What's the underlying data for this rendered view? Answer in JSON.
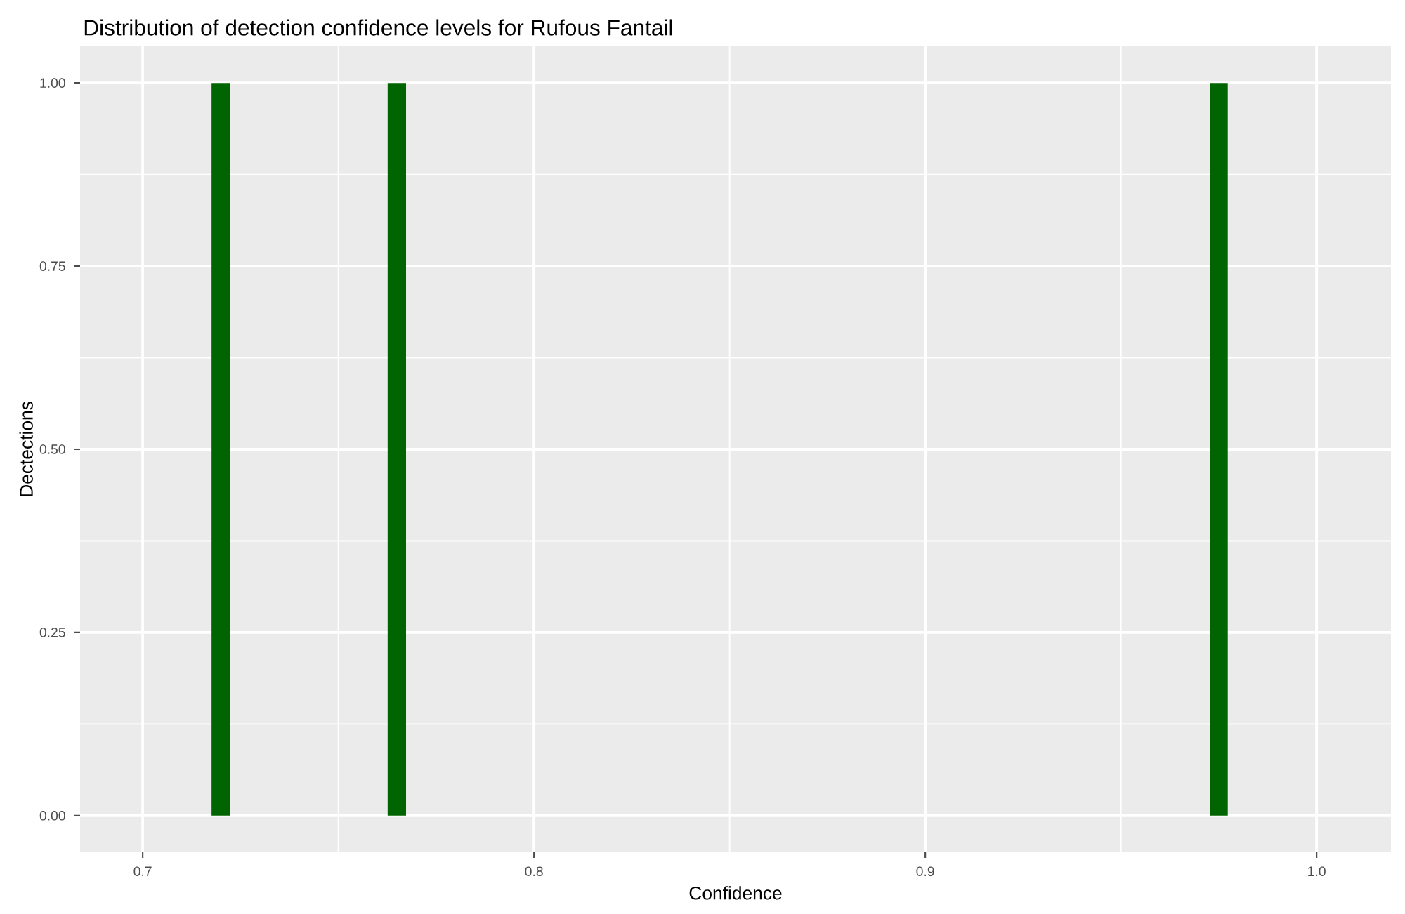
{
  "chart_data": {
    "type": "histogram",
    "title": "Distribution of detection confidence levels for Rufous Fantail",
    "xlabel": "Confidence",
    "ylabel": "Dectections",
    "bins": [
      0.7176,
      0.7223,
      0.7626,
      0.7673,
      0.9727,
      0.9773
    ],
    "values": [
      1,
      0,
      1,
      0,
      1
    ],
    "color": "#006400",
    "xlim": [
      0.684,
      1.019
    ],
    "ylim": [
      -0.05,
      1.05
    ],
    "xticks": [
      0.7,
      0.8,
      0.9,
      {
        "value": 1.0,
        "label": "1.0"
      }
    ],
    "yticks": [
      {
        "value": 0,
        "label": "0.00"
      },
      {
        "value": 0.25,
        "label": "0.25"
      },
      {
        "value": 0.5,
        "label": "0.50"
      },
      {
        "value": 0.75,
        "label": "0.75"
      },
      {
        "value": 1,
        "label": "1.00"
      }
    ],
    "grid": true
  }
}
